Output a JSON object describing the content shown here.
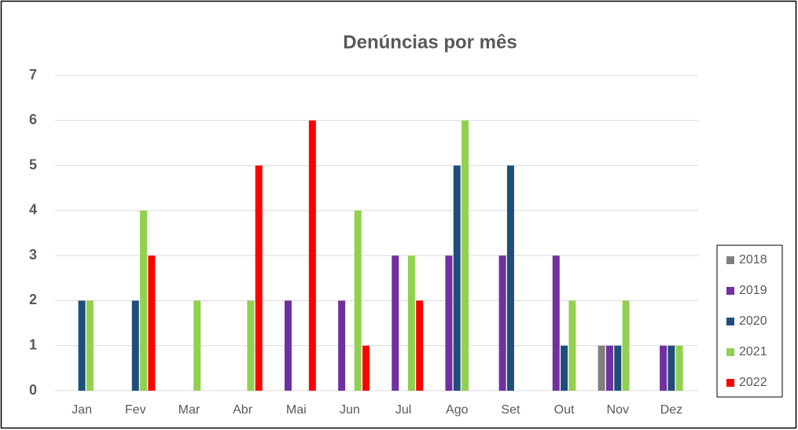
{
  "chart_data": {
    "type": "bar",
    "title": "Denúncias por mês",
    "categories": [
      "Jan",
      "Fev",
      "Mar",
      "Abr",
      "Mai",
      "Jun",
      "Jul",
      "Ago",
      "Set",
      "Out",
      "Nov",
      "Dez"
    ],
    "series": [
      {
        "name": "2018",
        "color": "#7f7f7f",
        "values": [
          0,
          0,
          0,
          0,
          0,
          0,
          0,
          0,
          0,
          0,
          1,
          0
        ]
      },
      {
        "name": "2019",
        "color": "#7030a0",
        "values": [
          0,
          0,
          0,
          0,
          2,
          2,
          3,
          3,
          3,
          3,
          1,
          1
        ]
      },
      {
        "name": "2020",
        "color": "#1f4e79",
        "values": [
          2,
          2,
          0,
          0,
          0,
          0,
          0,
          5,
          5,
          1,
          1,
          1
        ]
      },
      {
        "name": "2021",
        "color": "#92d050",
        "values": [
          2,
          4,
          2,
          2,
          0,
          4,
          3,
          6,
          0,
          2,
          2,
          1
        ]
      },
      {
        "name": "2022",
        "color": "#ff0000",
        "values": [
          0,
          3,
          0,
          5,
          6,
          1,
          2,
          0,
          0,
          0,
          0,
          0
        ]
      }
    ],
    "ylim": [
      0,
      7
    ],
    "yticks": [
      0,
      1,
      2,
      3,
      4,
      5,
      6,
      7
    ],
    "grid": true,
    "legend": "right"
  }
}
